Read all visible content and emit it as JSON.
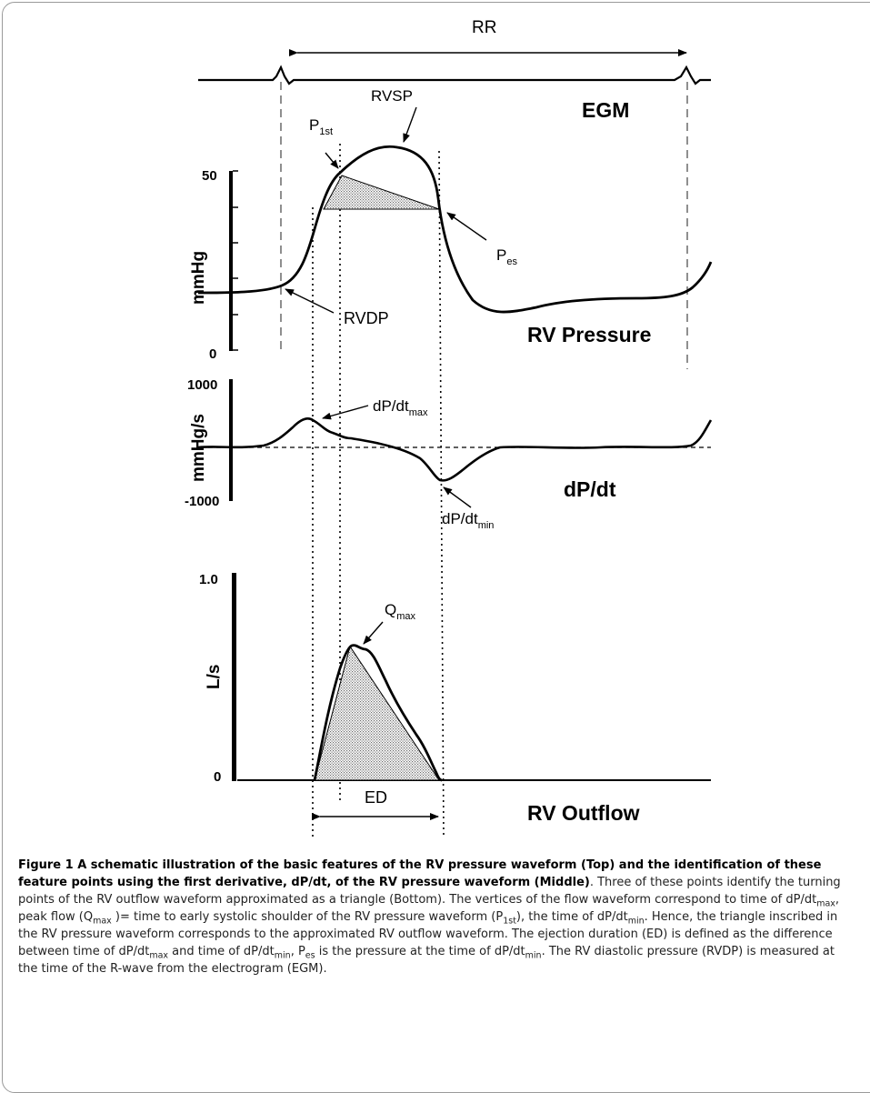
{
  "figure": {
    "rr_label": "RR",
    "egm_label": "EGM",
    "rv_pressure_label": "RV Pressure",
    "dpdt_label": "dP/dt",
    "rv_outflow_label": "RV Outflow",
    "p1st_main": "P",
    "p1st_sub": "1st",
    "rvsp_label": "RVSP",
    "pes_main": "P",
    "pes_sub": "es",
    "rvdp_label": "RVDP",
    "dpdtmax_main": "dP/dt",
    "dpdtmax_sub": "max",
    "dpdtmin_main": "dP/dt",
    "dpdtmin_sub": "min",
    "qmax_main": "Q",
    "qmax_sub": "max",
    "ed_label": "ED",
    "pressure_axis": {
      "unit": "mmHg",
      "top": "50",
      "bottom": "0"
    },
    "dpdt_axis": {
      "unit": "mmHg/s",
      "top": "1000",
      "bottom": "-1000"
    },
    "flow_axis": {
      "unit": "L/s",
      "top": "1.0",
      "bottom": "0"
    }
  },
  "caption": {
    "head": "Figure 1 A schematic illustration of the basic features of the RV pressure waveform (Top) and the identification of these feature points using the first derivative, dP/dt, of the RV pressure waveform (Middle)",
    "t1": ". Three of these points identify the turning points of the RV outflow waveform approximated as a triangle (Bottom). The vertices of the flow waveform correspond to time of dP/dt",
    "s1": "max",
    "t2": ", peak flow (Q",
    "s2": "max",
    "t3": " )= time to early systolic shoulder of the RV pressure waveform (P",
    "s3": "1st",
    "t4": "), the time of dP/dt",
    "s4": "min",
    "t5": ". Hence, the triangle inscribed in the RV pressure waveform corresponds to the approximated RV outflow waveform. The ejection duration (ED) is defined as the difference between time of dP/dt",
    "s5": "max",
    "t6": " and time of dP/dt",
    "s6": "min",
    "t7": ", P",
    "s7": "es",
    "t8": " is the pressure at the time of dP/dt",
    "s8": "min",
    "t9": ". The RV diastolic pressure (RVDP) is measured at the time of the R-wave from the electrogram (EGM)."
  },
  "colors": {
    "ink": "#000000",
    "frame": "#9a9a9a",
    "shade": "#b8b8b8"
  }
}
